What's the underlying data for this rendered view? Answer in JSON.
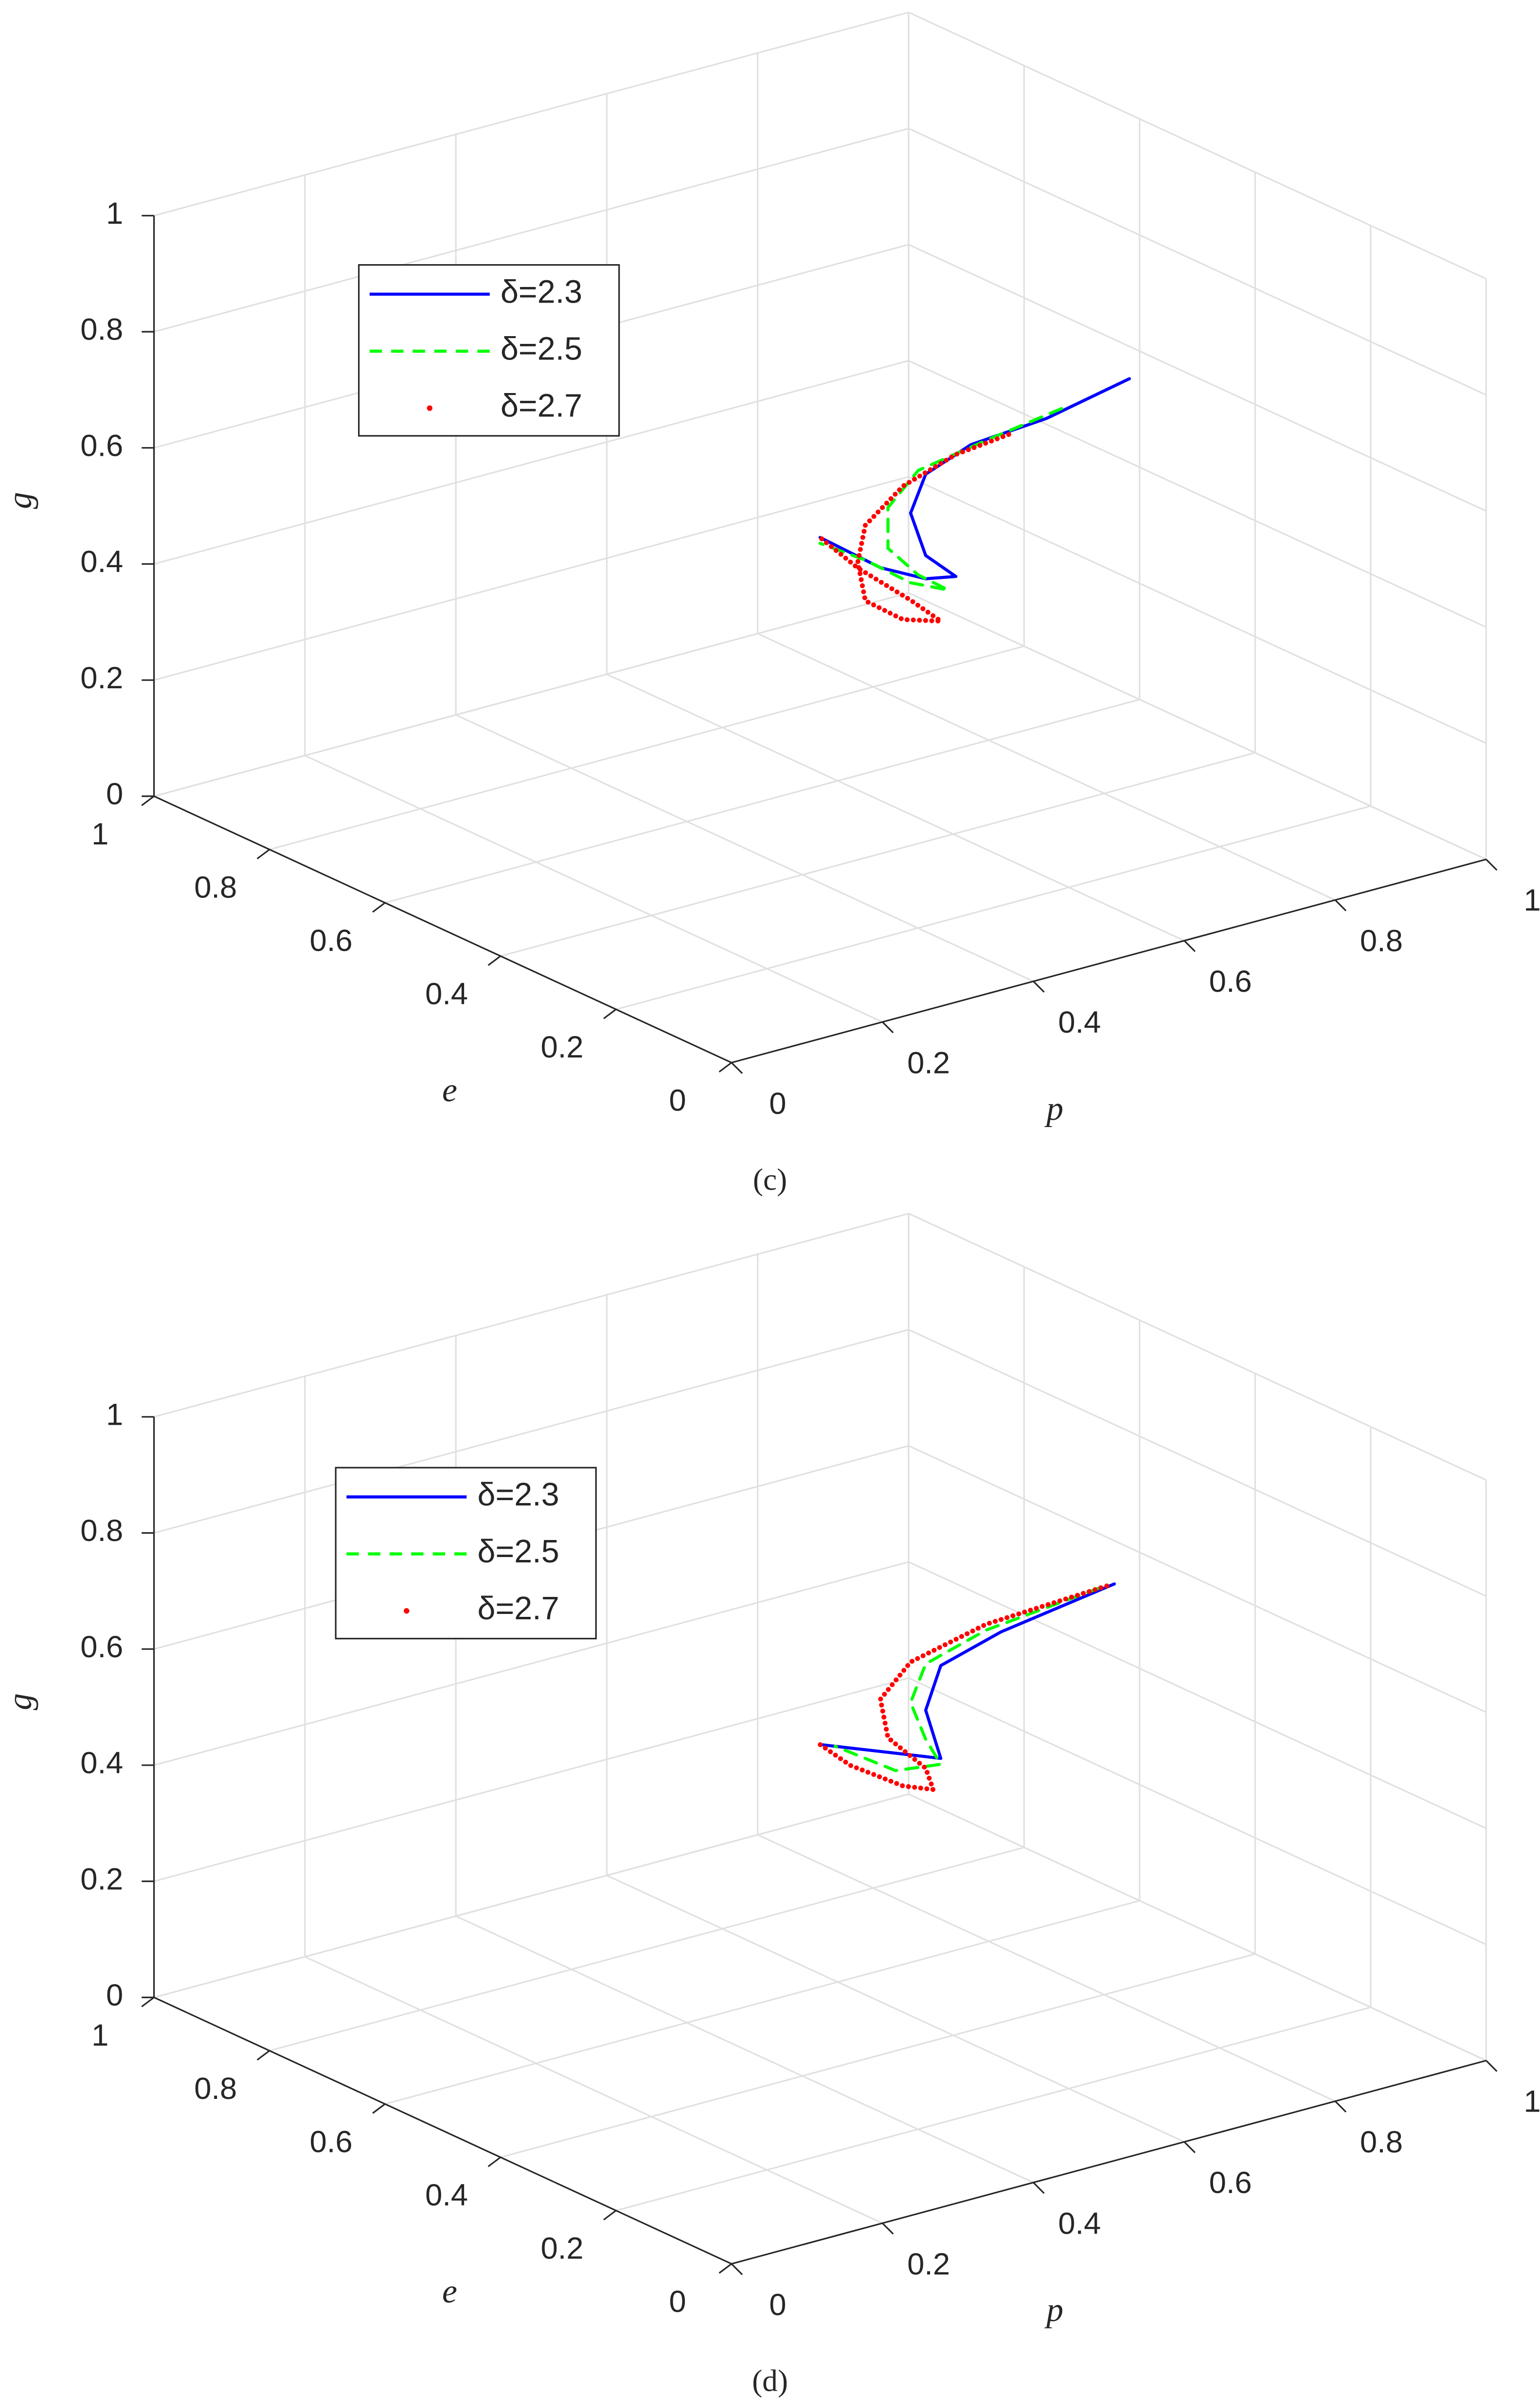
{
  "chart_data": [
    {
      "type": "line3d",
      "caption": "(c)",
      "xlabel": "p",
      "ylabel": "e",
      "zlabel": "g",
      "xlim": [
        0,
        1
      ],
      "ylim": [
        0,
        1
      ],
      "zlim": [
        0,
        1
      ],
      "xticks": [
        0,
        0.2,
        0.4,
        0.6,
        0.8,
        1
      ],
      "yticks": [
        0,
        0.2,
        0.4,
        0.6,
        0.8,
        1
      ],
      "zticks": [
        0,
        0.2,
        0.4,
        0.6,
        0.8,
        1
      ],
      "grid": true,
      "legend": "upper left",
      "series": [
        {
          "name": "δ=2.3",
          "color": "#0000ff",
          "style": "solid",
          "x": [
            0.91,
            0.8,
            0.7,
            0.64,
            0.62,
            0.64,
            0.68,
            0.64,
            0.58,
            0.5
          ],
          "y": [
            0.5,
            0.5,
            0.5,
            0.5,
            0.5,
            0.5,
            0.5,
            0.5,
            0.5,
            0.5
          ],
          "values": [
            0.63,
            0.6,
            0.59,
            0.56,
            0.5,
            0.42,
            0.37,
            0.38,
            0.42,
            0.5
          ]
        },
        {
          "name": "δ=2.5",
          "color": "#00ff00",
          "style": "dashed",
          "x": [
            0.82,
            0.72,
            0.63,
            0.59,
            0.59,
            0.63,
            0.67,
            0.62,
            0.56,
            0.5
          ],
          "y": [
            0.5,
            0.5,
            0.5,
            0.5,
            0.5,
            0.5,
            0.5,
            0.5,
            0.5,
            0.5
          ],
          "values": [
            0.61,
            0.59,
            0.57,
            0.52,
            0.45,
            0.39,
            0.35,
            0.38,
            0.44,
            0.49
          ]
        },
        {
          "name": "δ=2.7",
          "color": "#ff0000",
          "style": "dotted",
          "x": [
            0.75,
            0.68,
            0.61,
            0.56,
            0.55,
            0.56,
            0.61,
            0.66,
            0.62,
            0.55,
            0.5
          ],
          "y": [
            0.5,
            0.5,
            0.5,
            0.5,
            0.5,
            0.5,
            0.5,
            0.5,
            0.5,
            0.5,
            0.5
          ],
          "values": [
            0.59,
            0.58,
            0.55,
            0.5,
            0.44,
            0.37,
            0.32,
            0.3,
            0.35,
            0.43,
            0.5
          ]
        }
      ]
    },
    {
      "type": "line3d",
      "caption": "(d)",
      "xlabel": "p",
      "ylabel": "e",
      "zlabel": "g",
      "xlim": [
        0,
        1
      ],
      "ylim": [
        0,
        1
      ],
      "zlim": [
        0,
        1
      ],
      "xticks": [
        0,
        0.2,
        0.4,
        0.6,
        0.8,
        1
      ],
      "yticks": [
        0,
        0.2,
        0.4,
        0.6,
        0.8,
        1
      ],
      "zticks": [
        0,
        0.2,
        0.4,
        0.6,
        0.8,
        1
      ],
      "grid": true,
      "legend": "upper left",
      "series": [
        {
          "name": "δ=2.3",
          "color": "#0000ff",
          "style": "solid",
          "x": [
            0.89,
            0.74,
            0.66,
            0.64,
            0.66,
            0.6,
            0.5
          ],
          "y": [
            0.5,
            0.5,
            0.5,
            0.5,
            0.5,
            0.5,
            0.5
          ],
          "values": [
            0.63,
            0.6,
            0.57,
            0.5,
            0.41,
            0.44,
            0.49
          ]
        },
        {
          "name": "δ=2.5",
          "color": "#00ff00",
          "style": "dashed",
          "x": [
            0.87,
            0.72,
            0.64,
            0.62,
            0.64,
            0.66,
            0.6,
            0.52
          ],
          "y": [
            0.5,
            0.5,
            0.5,
            0.5,
            0.5,
            0.5,
            0.5,
            0.5
          ],
          "values": [
            0.63,
            0.61,
            0.58,
            0.52,
            0.45,
            0.4,
            0.41,
            0.48
          ]
        },
        {
          "name": "δ=2.7",
          "color": "#ff0000",
          "style": "dotted",
          "x": [
            0.88,
            0.72,
            0.62,
            0.58,
            0.59,
            0.64,
            0.65,
            0.61,
            0.54,
            0.5
          ],
          "y": [
            0.5,
            0.5,
            0.5,
            0.5,
            0.5,
            0.5,
            0.5,
            0.5,
            0.5,
            0.5
          ],
          "values": [
            0.63,
            0.62,
            0.59,
            0.54,
            0.47,
            0.4,
            0.36,
            0.38,
            0.44,
            0.49
          ]
        }
      ]
    }
  ]
}
